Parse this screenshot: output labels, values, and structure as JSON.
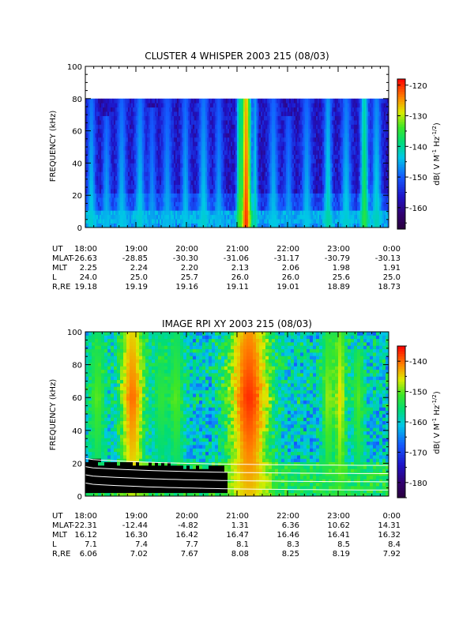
{
  "chart_data": [
    {
      "type": "heatmap",
      "title": "CLUSTER 4 WHISPER 2003 215 (08/03)",
      "ylabel": "FREQUENCY (kHz)",
      "ylim": [
        0,
        100
      ],
      "yticks": [
        "0",
        "20",
        "40",
        "60",
        "80",
        "100"
      ],
      "data_frequency_max": 80,
      "colorbar": {
        "label_main": "dB( V M",
        "label_sup1": "-1",
        "label_mid": " Hz",
        "label_sup2": "-1/2",
        "label_end": ")",
        "range": [
          -167,
          -118
        ],
        "ticks": [
          "-120",
          "-130",
          "-140",
          "-150",
          "-160"
        ],
        "tick_values": [
          -120,
          -130,
          -140,
          -150,
          -160
        ]
      },
      "ephemeris": [
        {
          "label": "UT",
          "values": [
            "18:00",
            "19:00",
            "20:00",
            "21:00",
            "22:00",
            "23:00",
            "0:00"
          ]
        },
        {
          "label": "MLAT",
          "values": [
            "-26.63",
            "-28.85",
            "-30.30",
            "-31.06",
            "-31.17",
            "-30.79",
            "-30.13"
          ]
        },
        {
          "label": "MLT",
          "values": [
            "2.25",
            "2.24",
            "2.20",
            "2.13",
            "2.06",
            "1.98",
            "1.91"
          ]
        },
        {
          "label": "L",
          "values": [
            "24.0",
            "25.0",
            "25.7",
            "26.0",
            "26.0",
            "25.6",
            "25.0"
          ]
        },
        {
          "label": "R,RE",
          "values": [
            "19.18",
            "19.19",
            "19.16",
            "19.11",
            "19.01",
            "18.89",
            "18.73"
          ]
        }
      ],
      "features": {
        "bursts": [
          {
            "t": 0.53,
            "w": 0.012,
            "top": 80,
            "level": -120
          },
          {
            "t": 0.51,
            "w": 0.008,
            "top": 80,
            "level": -133
          },
          {
            "t": 0.56,
            "w": 0.006,
            "top": 80,
            "level": -140
          },
          {
            "t": 0.02,
            "w": 0.01,
            "top": 80,
            "level": -142
          },
          {
            "t": 0.07,
            "w": 0.01,
            "top": 70,
            "level": -144
          },
          {
            "t": 0.12,
            "w": 0.012,
            "top": 80,
            "level": -143
          },
          {
            "t": 0.18,
            "w": 0.012,
            "top": 80,
            "level": -142
          },
          {
            "t": 0.22,
            "w": 0.01,
            "top": 75,
            "level": -145
          },
          {
            "t": 0.27,
            "w": 0.012,
            "top": 80,
            "level": -144
          },
          {
            "t": 0.33,
            "w": 0.01,
            "top": 80,
            "level": -143
          },
          {
            "t": 0.39,
            "w": 0.012,
            "top": 80,
            "level": -142
          },
          {
            "t": 0.44,
            "w": 0.01,
            "top": 80,
            "level": -144
          },
          {
            "t": 0.62,
            "w": 0.012,
            "top": 80,
            "level": -143
          },
          {
            "t": 0.67,
            "w": 0.01,
            "top": 70,
            "level": -145
          },
          {
            "t": 0.73,
            "w": 0.012,
            "top": 80,
            "level": -143
          },
          {
            "t": 0.8,
            "w": 0.01,
            "top": 80,
            "level": -140
          },
          {
            "t": 0.86,
            "w": 0.012,
            "top": 80,
            "level": -142
          },
          {
            "t": 0.92,
            "w": 0.01,
            "top": 80,
            "level": -135
          },
          {
            "t": 0.96,
            "w": 0.012,
            "top": 80,
            "level": -141
          }
        ]
      }
    },
    {
      "type": "heatmap",
      "title": "IMAGE RPI XY 2003 215 (08/03)",
      "ylabel": "FREQUENCY (kHz)",
      "ylim": [
        0,
        100
      ],
      "yticks": [
        "0",
        "20",
        "40",
        "60",
        "80",
        "100"
      ],
      "colorbar": {
        "label_main": "dB( V M",
        "label_sup1": "-1",
        "label_mid": " Hz",
        "label_sup2": "-1/2",
        "label_end": ")",
        "range": [
          -185,
          -135
        ],
        "ticks": [
          "-140",
          "-150",
          "-160",
          "-170",
          "-180"
        ],
        "tick_values": [
          -140,
          -150,
          -160,
          -170,
          -180
        ]
      },
      "ephemeris": [
        {
          "label": "UT",
          "values": [
            "18:00",
            "19:00",
            "20:00",
            "21:00",
            "22:00",
            "23:00",
            "0:00"
          ]
        },
        {
          "label": "MLAT",
          "values": [
            "-22.31",
            "-12.44",
            "-4.82",
            "1.31",
            "6.36",
            "10.62",
            "14.31"
          ]
        },
        {
          "label": "MLT",
          "values": [
            "16.12",
            "16.30",
            "16.42",
            "16.47",
            "16.46",
            "16.41",
            "16.32"
          ]
        },
        {
          "label": "L",
          "values": [
            "7.1",
            "7.4",
            "7.7",
            "8.1",
            "8.3",
            "8.5",
            "8.4"
          ]
        },
        {
          "label": "R,RE",
          "values": [
            "6.06",
            "7.02",
            "7.67",
            "8.08",
            "8.25",
            "8.19",
            "7.92"
          ]
        }
      ],
      "features": {
        "bursts": [
          {
            "t": 0.155,
            "w": 0.03,
            "top": 100,
            "level": -140
          },
          {
            "t": 0.54,
            "w": 0.05,
            "top": 100,
            "level": -137
          },
          {
            "t": 0.04,
            "w": 0.02,
            "top": 100,
            "level": -150
          },
          {
            "t": 0.25,
            "w": 0.02,
            "top": 100,
            "level": -152
          },
          {
            "t": 0.3,
            "w": 0.02,
            "top": 100,
            "level": -150
          },
          {
            "t": 0.8,
            "w": 0.015,
            "top": 100,
            "level": -148
          },
          {
            "t": 0.84,
            "w": 0.015,
            "top": 100,
            "level": -145
          },
          {
            "t": 0.9,
            "w": 0.015,
            "top": 90,
            "level": -150
          }
        ],
        "black_region": {
          "t_start": 0.0,
          "t_end": 0.47
        },
        "white_curves": 4
      }
    }
  ]
}
